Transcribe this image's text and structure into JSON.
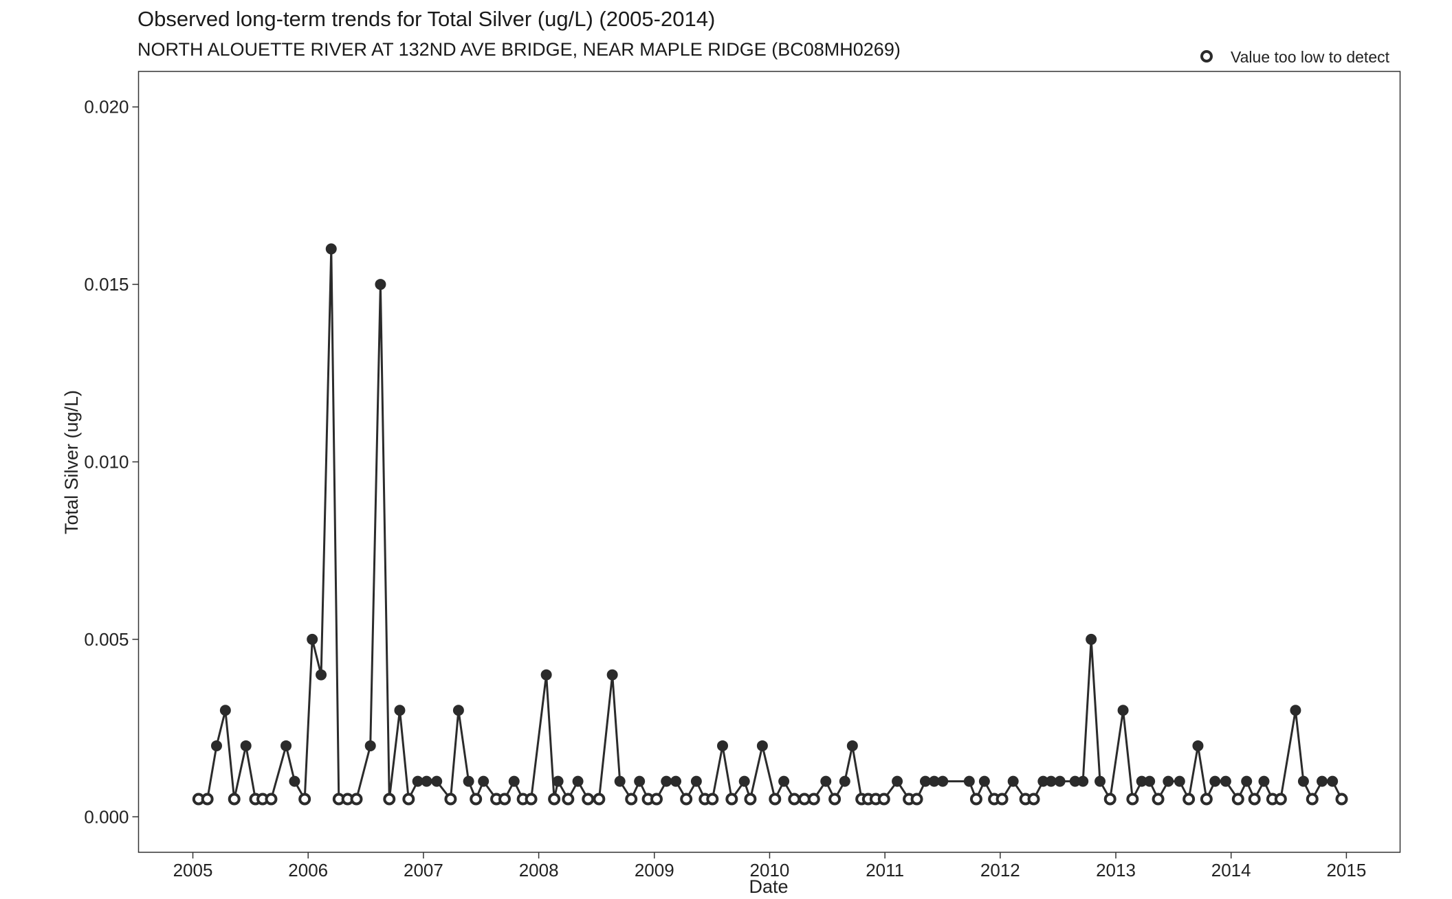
{
  "chart_data": {
    "type": "line",
    "title": "Observed long-term trends for Total Silver (ug/L) (2005-2014)",
    "subtitle": "NORTH ALOUETTE RIVER AT 132ND AVE BRIDGE, NEAR MAPLE RIDGE (BC08MH0269)",
    "xlabel": "Date",
    "ylabel": "Total Silver (ug/L)",
    "xlim": [
      "2004-07-13",
      "2015-06-20"
    ],
    "ylim": [
      -0.001,
      0.021
    ],
    "x_ticks": [
      "2005",
      "2006",
      "2007",
      "2008",
      "2009",
      "2010",
      "2011",
      "2012",
      "2013",
      "2014",
      "2015"
    ],
    "y_ticks": [
      "0.000",
      "0.005",
      "0.010",
      "0.015",
      "0.020"
    ],
    "grid": false,
    "legend_position": "top-right",
    "legend": {
      "label": "Value too low to detect",
      "marker": "open-circle"
    },
    "line_color": "#2b2b2b",
    "series": [
      {
        "points": [
          {
            "x": "2005-01-19",
            "y": 0.0005,
            "detect": false
          },
          {
            "x": "2005-02-16",
            "y": 0.0005,
            "detect": false
          },
          {
            "x": "2005-03-17",
            "y": 0.002,
            "detect": true
          },
          {
            "x": "2005-04-14",
            "y": 0.003,
            "detect": true
          },
          {
            "x": "2005-05-12",
            "y": 0.0005,
            "detect": false
          },
          {
            "x": "2005-06-18",
            "y": 0.002,
            "detect": true
          },
          {
            "x": "2005-07-18",
            "y": 0.0005,
            "detect": false
          },
          {
            "x": "2005-08-10",
            "y": 0.0005,
            "detect": false
          },
          {
            "x": "2005-09-06",
            "y": 0.0005,
            "detect": false
          },
          {
            "x": "2005-10-23",
            "y": 0.002,
            "detect": true
          },
          {
            "x": "2005-11-19",
            "y": 0.001,
            "detect": true
          },
          {
            "x": "2005-12-21",
            "y": 0.0005,
            "detect": false
          },
          {
            "x": "2006-01-14",
            "y": 0.005,
            "detect": true
          },
          {
            "x": "2006-02-11",
            "y": 0.004,
            "detect": true
          },
          {
            "x": "2006-03-15",
            "y": 0.016,
            "detect": true
          },
          {
            "x": "2006-04-08",
            "y": 0.0005,
            "detect": false
          },
          {
            "x": "2006-05-06",
            "y": 0.0005,
            "detect": false
          },
          {
            "x": "2006-06-03",
            "y": 0.0005,
            "detect": false
          },
          {
            "x": "2006-07-17",
            "y": 0.002,
            "detect": true
          },
          {
            "x": "2006-08-18",
            "y": 0.015,
            "detect": true
          },
          {
            "x": "2006-09-15",
            "y": 0.0005,
            "detect": false
          },
          {
            "x": "2006-10-18",
            "y": 0.003,
            "detect": true
          },
          {
            "x": "2006-11-15",
            "y": 0.0005,
            "detect": false
          },
          {
            "x": "2006-12-14",
            "y": 0.001,
            "detect": true
          },
          {
            "x": "2007-01-11",
            "y": 0.001,
            "detect": true
          },
          {
            "x": "2007-02-12",
            "y": 0.001,
            "detect": true
          },
          {
            "x": "2007-03-28",
            "y": 0.0005,
            "detect": false
          },
          {
            "x": "2007-04-22",
            "y": 0.003,
            "detect": true
          },
          {
            "x": "2007-05-24",
            "y": 0.001,
            "detect": true
          },
          {
            "x": "2007-06-16",
            "y": 0.0005,
            "detect": false
          },
          {
            "x": "2007-07-10",
            "y": 0.001,
            "detect": true
          },
          {
            "x": "2007-08-20",
            "y": 0.0005,
            "detect": false
          },
          {
            "x": "2007-09-15",
            "y": 0.0005,
            "detect": false
          },
          {
            "x": "2007-10-15",
            "y": 0.001,
            "detect": true
          },
          {
            "x": "2007-11-12",
            "y": 0.0005,
            "detect": false
          },
          {
            "x": "2007-12-08",
            "y": 0.0005,
            "detect": false
          },
          {
            "x": "2008-01-25",
            "y": 0.004,
            "detect": true
          },
          {
            "x": "2008-02-19",
            "y": 0.0005,
            "detect": false
          },
          {
            "x": "2008-03-02",
            "y": 0.001,
            "detect": true
          },
          {
            "x": "2008-04-03",
            "y": 0.0005,
            "detect": false
          },
          {
            "x": "2008-05-04",
            "y": 0.001,
            "detect": true
          },
          {
            "x": "2008-06-05",
            "y": 0.0005,
            "detect": false
          },
          {
            "x": "2008-07-10",
            "y": 0.0005,
            "detect": false
          },
          {
            "x": "2008-08-21",
            "y": 0.004,
            "detect": true
          },
          {
            "x": "2008-09-14",
            "y": 0.001,
            "detect": true
          },
          {
            "x": "2008-10-20",
            "y": 0.0005,
            "detect": false
          },
          {
            "x": "2008-11-15",
            "y": 0.001,
            "detect": true
          },
          {
            "x": "2008-12-12",
            "y": 0.0005,
            "detect": false
          },
          {
            "x": "2009-01-08",
            "y": 0.0005,
            "detect": false
          },
          {
            "x": "2009-02-08",
            "y": 0.001,
            "detect": true
          },
          {
            "x": "2009-03-10",
            "y": 0.001,
            "detect": true
          },
          {
            "x": "2009-04-12",
            "y": 0.0005,
            "detect": false
          },
          {
            "x": "2009-05-14",
            "y": 0.001,
            "detect": true
          },
          {
            "x": "2009-06-10",
            "y": 0.0005,
            "detect": false
          },
          {
            "x": "2009-07-04",
            "y": 0.0005,
            "detect": false
          },
          {
            "x": "2009-08-05",
            "y": 0.002,
            "detect": true
          },
          {
            "x": "2009-09-03",
            "y": 0.0005,
            "detect": false
          },
          {
            "x": "2009-10-13",
            "y": 0.001,
            "detect": true
          },
          {
            "x": "2009-11-01",
            "y": 0.0005,
            "detect": false
          },
          {
            "x": "2009-12-09",
            "y": 0.002,
            "detect": true
          },
          {
            "x": "2010-01-18",
            "y": 0.0005,
            "detect": false
          },
          {
            "x": "2010-02-15",
            "y": 0.001,
            "detect": true
          },
          {
            "x": "2010-03-20",
            "y": 0.0005,
            "detect": false
          },
          {
            "x": "2010-04-21",
            "y": 0.0005,
            "detect": false
          },
          {
            "x": "2010-05-21",
            "y": 0.0005,
            "detect": false
          },
          {
            "x": "2010-06-28",
            "y": 0.001,
            "detect": true
          },
          {
            "x": "2010-07-26",
            "y": 0.0005,
            "detect": false
          },
          {
            "x": "2010-08-27",
            "y": 0.001,
            "detect": true
          },
          {
            "x": "2010-09-20",
            "y": 0.002,
            "detect": true
          },
          {
            "x": "2010-10-19",
            "y": 0.0005,
            "detect": false
          },
          {
            "x": "2010-11-09",
            "y": 0.0005,
            "detect": false
          },
          {
            "x": "2010-12-03",
            "y": 0.0005,
            "detect": false
          },
          {
            "x": "2010-12-29",
            "y": 0.0005,
            "detect": false
          },
          {
            "x": "2011-02-09",
            "y": 0.001,
            "detect": true
          },
          {
            "x": "2011-03-18",
            "y": 0.0005,
            "detect": false
          },
          {
            "x": "2011-04-12",
            "y": 0.0005,
            "detect": false
          },
          {
            "x": "2011-05-09",
            "y": 0.001,
            "detect": true
          },
          {
            "x": "2011-06-06",
            "y": 0.001,
            "detect": true
          },
          {
            "x": "2011-07-03",
            "y": 0.001,
            "detect": true
          },
          {
            "x": "2011-09-25",
            "y": 0.001,
            "detect": true
          },
          {
            "x": "2011-10-17",
            "y": 0.0005,
            "detect": false
          },
          {
            "x": "2011-11-12",
            "y": 0.001,
            "detect": true
          },
          {
            "x": "2011-12-13",
            "y": 0.0005,
            "detect": false
          },
          {
            "x": "2012-01-07",
            "y": 0.0005,
            "detect": false
          },
          {
            "x": "2012-02-11",
            "y": 0.001,
            "detect": true
          },
          {
            "x": "2012-03-21",
            "y": 0.0005,
            "detect": false
          },
          {
            "x": "2012-04-16",
            "y": 0.0005,
            "detect": false
          },
          {
            "x": "2012-05-16",
            "y": 0.001,
            "detect": true
          },
          {
            "x": "2012-06-10",
            "y": 0.001,
            "detect": true
          },
          {
            "x": "2012-07-08",
            "y": 0.001,
            "detect": true
          },
          {
            "x": "2012-08-25",
            "y": 0.001,
            "detect": true
          },
          {
            "x": "2012-09-19",
            "y": 0.001,
            "detect": true
          },
          {
            "x": "2012-10-15",
            "y": 0.005,
            "detect": true
          },
          {
            "x": "2012-11-12",
            "y": 0.001,
            "detect": true
          },
          {
            "x": "2012-12-14",
            "y": 0.0005,
            "detect": false
          },
          {
            "x": "2013-01-24",
            "y": 0.003,
            "detect": true
          },
          {
            "x": "2013-02-23",
            "y": 0.0005,
            "detect": false
          },
          {
            "x": "2013-03-24",
            "y": 0.001,
            "detect": true
          },
          {
            "x": "2013-04-18",
            "y": 0.001,
            "detect": true
          },
          {
            "x": "2013-05-15",
            "y": 0.0005,
            "detect": false
          },
          {
            "x": "2013-06-16",
            "y": 0.001,
            "detect": true
          },
          {
            "x": "2013-07-22",
            "y": 0.001,
            "detect": true
          },
          {
            "x": "2013-08-20",
            "y": 0.0005,
            "detect": false
          },
          {
            "x": "2013-09-18",
            "y": 0.002,
            "detect": true
          },
          {
            "x": "2013-10-15",
            "y": 0.0005,
            "detect": false
          },
          {
            "x": "2013-11-11",
            "y": 0.001,
            "detect": true
          },
          {
            "x": "2013-12-15",
            "y": 0.001,
            "detect": true
          },
          {
            "x": "2014-01-23",
            "y": 0.0005,
            "detect": false
          },
          {
            "x": "2014-02-19",
            "y": 0.001,
            "detect": true
          },
          {
            "x": "2014-03-16",
            "y": 0.0005,
            "detect": false
          },
          {
            "x": "2014-04-15",
            "y": 0.001,
            "detect": true
          },
          {
            "x": "2014-05-12",
            "y": 0.0005,
            "detect": false
          },
          {
            "x": "2014-06-07",
            "y": 0.0005,
            "detect": false
          },
          {
            "x": "2014-07-24",
            "y": 0.003,
            "detect": true
          },
          {
            "x": "2014-08-18",
            "y": 0.001,
            "detect": true
          },
          {
            "x": "2014-09-15",
            "y": 0.0005,
            "detect": false
          },
          {
            "x": "2014-10-16",
            "y": 0.001,
            "detect": true
          },
          {
            "x": "2014-11-18",
            "y": 0.001,
            "detect": true
          },
          {
            "x": "2014-12-17",
            "y": 0.0005,
            "detect": false
          }
        ]
      }
    ]
  }
}
